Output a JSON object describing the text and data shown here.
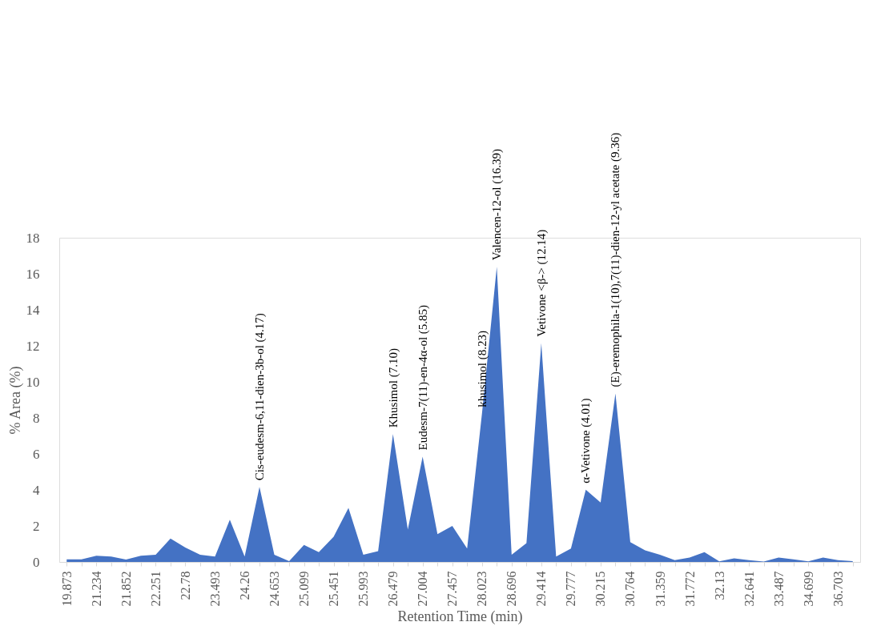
{
  "chart_data": {
    "type": "area",
    "xlabel": "Retention Time (min)",
    "ylabel": "% Area (%)",
    "color": "#4472c4",
    "categories": [
      "19.873",
      null,
      "21.234",
      null,
      "21.852",
      null,
      "22.251",
      null,
      "22.78",
      null,
      "23.493",
      null,
      "24.26",
      null,
      "24.653",
      null,
      "25.099",
      null,
      "25.451",
      null,
      "25.993",
      null,
      "26.479",
      null,
      "27.004",
      null,
      "27.457",
      null,
      "28.023",
      null,
      "28.696",
      null,
      "29.414",
      null,
      "29.777",
      null,
      "30.215",
      null,
      "30.764",
      null,
      "31.359",
      null,
      "31.772",
      null,
      "32.13",
      null,
      "32.641",
      null,
      "33.487",
      null,
      "34.699",
      null,
      "36.703",
      null
    ],
    "values": [
      0.15,
      0.15,
      0.35,
      0.3,
      0.13,
      0.35,
      0.4,
      1.3,
      0.8,
      0.4,
      0.3,
      2.35,
      0.3,
      4.17,
      0.4,
      0.05,
      0.95,
      0.55,
      1.4,
      3.0,
      0.4,
      0.6,
      7.1,
      1.8,
      5.85,
      1.55,
      2.0,
      0.75,
      8.23,
      16.39,
      0.4,
      1.05,
      12.14,
      0.3,
      0.75,
      4.01,
      3.3,
      9.36,
      1.1,
      0.65,
      0.4,
      0.1,
      0.25,
      0.55,
      0.03,
      0.2,
      0.1,
      0.02,
      0.25,
      0.15,
      0.03,
      0.25,
      0.1,
      0.05
    ],
    "ylim": [
      0,
      18
    ],
    "yticks": [
      0,
      2,
      4,
      6,
      8,
      10,
      12,
      14,
      16,
      18
    ],
    "grid": false,
    "annotations": [
      {
        "text": "Cis-eudesm-6,11-dien-3b-ol (4.17)",
        "y": 4.17
      },
      {
        "text": "Khusimol (7.10)",
        "x": "26.479",
        "y": 7.1
      },
      {
        "text": "Eudesm-7(11)-en-4α-ol (5.85)",
        "x": "27.004",
        "y": 5.85
      },
      {
        "text": "khusimol (8.23)",
        "x": "28.023",
        "y": 8.23
      },
      {
        "text": "Valencen-12-ol (16.39)",
        "y": 16.39
      },
      {
        "text": "Vetivone <β-> (12.14)",
        "x": "29.414",
        "y": 12.14
      },
      {
        "text": "α-Vetivone (4.01)",
        "y": 4.01
      },
      {
        "text": "(E)-eremophila-1(10),7(11)-dien-12-yl acetate (9.36)",
        "y": 9.36
      }
    ]
  }
}
